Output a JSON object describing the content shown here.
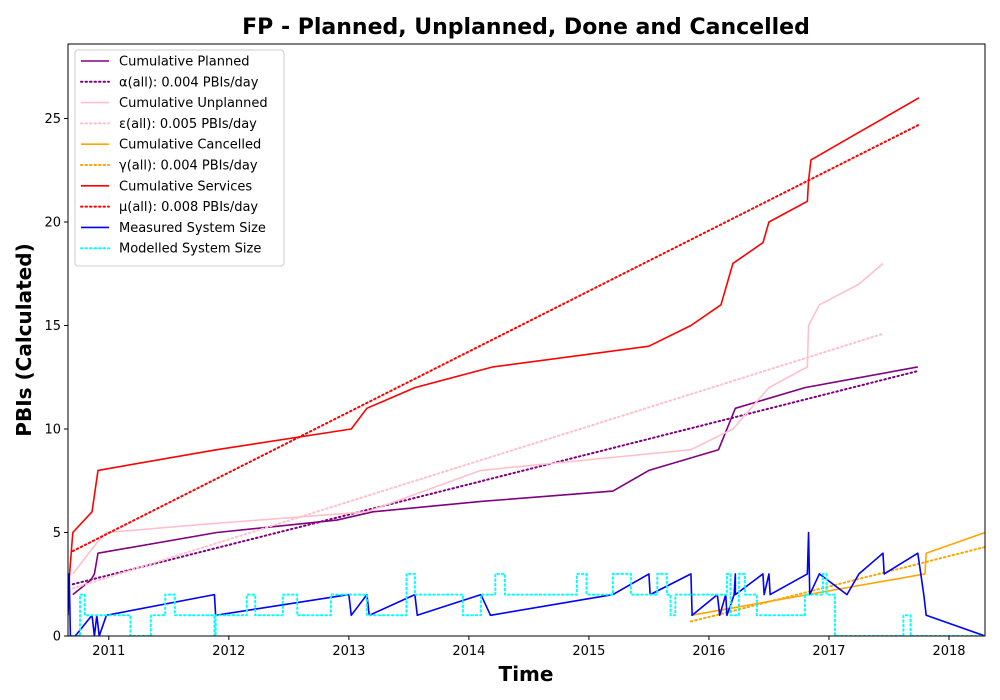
{
  "chart_data": {
    "type": "line",
    "title": "FP - Planned, Unplanned, Done  and Cancelled",
    "xlabel": "Time",
    "ylabel": "PBIs (Calculated)",
    "xlim": [
      2010.66,
      2018.3
    ],
    "ylim": [
      0,
      28.6
    ],
    "x_ticks": [
      2011,
      2012,
      2013,
      2014,
      2015,
      2016,
      2017,
      2018
    ],
    "x_tick_labels": [
      "2011",
      "2012",
      "2013",
      "2014",
      "2015",
      "2016",
      "2017",
      "2018"
    ],
    "y_ticks": [
      0,
      5,
      10,
      15,
      20,
      25
    ],
    "y_tick_labels": [
      "0",
      "5",
      "10",
      "15",
      "20",
      "25"
    ],
    "grid": false,
    "legend_position": "top-left",
    "series": [
      {
        "name": "Cumulative Planned",
        "color": "#800080",
        "style": "solid",
        "points": [
          [
            2010.7,
            2.0
          ],
          [
            2010.85,
            2.7
          ],
          [
            2010.88,
            3.0
          ],
          [
            2010.91,
            4.0
          ],
          [
            2011.9,
            5.0
          ],
          [
            2012.9,
            5.6
          ],
          [
            2013.2,
            6.0
          ],
          [
            2014.1,
            6.5
          ],
          [
            2015.2,
            7.0
          ],
          [
            2015.5,
            8.0
          ],
          [
            2016.08,
            9.0
          ],
          [
            2016.22,
            11.0
          ],
          [
            2016.8,
            12.0
          ],
          [
            2017.74,
            13.0
          ]
        ]
      },
      {
        "name": "α(all): 0.004 PBIs/day",
        "color": "#800080",
        "style": "dotted",
        "points": [
          [
            2010.7,
            2.5
          ],
          [
            2017.74,
            12.8
          ]
        ]
      },
      {
        "name": "Cumulative Unplanned",
        "color": "#ffc0cb",
        "style": "solid",
        "points": [
          [
            2010.7,
            3.0
          ],
          [
            2010.9,
            4.5
          ],
          [
            2010.98,
            5.0
          ],
          [
            2011.8,
            5.4
          ],
          [
            2013.15,
            6.0
          ],
          [
            2014.1,
            8.0
          ],
          [
            2015.5,
            8.8
          ],
          [
            2015.85,
            9.0
          ],
          [
            2016.2,
            10.0
          ],
          [
            2016.5,
            12.0
          ],
          [
            2016.82,
            13.0
          ],
          [
            2016.83,
            15.0
          ],
          [
            2016.92,
            16.0
          ],
          [
            2017.25,
            17.0
          ],
          [
            2017.45,
            18.0
          ]
        ]
      },
      {
        "name": "ε(all): 0.005 PBIs/day",
        "color": "#ffc0cb",
        "style": "dotted",
        "points": [
          [
            2010.7,
            2.3
          ],
          [
            2017.45,
            14.6
          ]
        ]
      },
      {
        "name": "Cumulative Cancelled",
        "color": "#ffa500",
        "style": "solid",
        "points": [
          [
            2015.85,
            1.0
          ],
          [
            2017.8,
            3.0
          ],
          [
            2017.81,
            4.0
          ],
          [
            2018.3,
            5.0
          ]
        ]
      },
      {
        "name": "γ(all): 0.004 PBIs/day",
        "color": "#ffa500",
        "style": "dotted",
        "points": [
          [
            2015.85,
            0.7
          ],
          [
            2018.3,
            4.3
          ]
        ]
      },
      {
        "name": "Cumulative Services",
        "color": "#ff0000",
        "style": "solid",
        "points": [
          [
            2010.66,
            2.0
          ],
          [
            2010.7,
            5.0
          ],
          [
            2010.86,
            6.0
          ],
          [
            2010.91,
            8.0
          ],
          [
            2011.9,
            9.0
          ],
          [
            2013.02,
            10.0
          ],
          [
            2013.15,
            11.0
          ],
          [
            2013.55,
            12.0
          ],
          [
            2014.2,
            13.0
          ],
          [
            2015.5,
            14.0
          ],
          [
            2015.85,
            15.0
          ],
          [
            2016.1,
            16.0
          ],
          [
            2016.15,
            17.0
          ],
          [
            2016.2,
            18.0
          ],
          [
            2016.45,
            19.0
          ],
          [
            2016.5,
            20.0
          ],
          [
            2016.82,
            21.0
          ],
          [
            2016.83,
            22.0
          ],
          [
            2016.85,
            23.0
          ],
          [
            2017.15,
            24.0
          ],
          [
            2017.45,
            25.0
          ],
          [
            2017.75,
            26.0
          ]
        ]
      },
      {
        "name": "μ(all): 0.008 PBIs/day",
        "color": "#ff0000",
        "style": "dotted",
        "points": [
          [
            2010.7,
            4.1
          ],
          [
            2017.75,
            24.7
          ]
        ]
      },
      {
        "name": "Measured System Size",
        "color": "#0000ff",
        "style": "solid",
        "points": [
          [
            2010.66,
            1.0
          ],
          [
            2010.67,
            3.0
          ],
          [
            2010.68,
            0.0
          ],
          [
            2010.72,
            0.0
          ],
          [
            2010.86,
            1.0
          ],
          [
            2010.88,
            0.0
          ],
          [
            2010.9,
            1.0
          ],
          [
            2010.92,
            0.0
          ],
          [
            2010.98,
            1.0
          ],
          [
            2011.88,
            2.0
          ],
          [
            2011.89,
            1.0
          ],
          [
            2013.0,
            2.0
          ],
          [
            2013.02,
            1.0
          ],
          [
            2013.15,
            2.0
          ],
          [
            2013.17,
            1.0
          ],
          [
            2013.55,
            2.0
          ],
          [
            2013.57,
            1.0
          ],
          [
            2014.1,
            2.0
          ],
          [
            2014.18,
            1.0
          ],
          [
            2015.2,
            2.0
          ],
          [
            2015.5,
            3.0
          ],
          [
            2015.51,
            2.0
          ],
          [
            2015.85,
            3.0
          ],
          [
            2015.86,
            1.0
          ],
          [
            2016.07,
            2.0
          ],
          [
            2016.09,
            1.0
          ],
          [
            2016.14,
            2.0
          ],
          [
            2016.15,
            1.0
          ],
          [
            2016.21,
            2.0
          ],
          [
            2016.22,
            3.0
          ],
          [
            2016.22,
            2.0
          ],
          [
            2016.45,
            3.0
          ],
          [
            2016.46,
            2.0
          ],
          [
            2016.5,
            3.0
          ],
          [
            2016.51,
            2.0
          ],
          [
            2016.82,
            3.0
          ],
          [
            2016.83,
            5.0
          ],
          [
            2016.84,
            2.0
          ],
          [
            2016.92,
            3.0
          ],
          [
            2017.15,
            2.0
          ],
          [
            2017.25,
            3.0
          ],
          [
            2017.45,
            4.0
          ],
          [
            2017.46,
            3.0
          ],
          [
            2017.74,
            4.0
          ],
          [
            2017.79,
            2.0
          ],
          [
            2017.81,
            1.0
          ],
          [
            2018.3,
            0.0
          ]
        ]
      },
      {
        "name": "Modelled System Size",
        "color": "#00ffff",
        "style": "dotted",
        "points": [
          [
            2010.66,
            0
          ],
          [
            2010.76,
            0
          ],
          [
            2010.76,
            2
          ],
          [
            2010.8,
            2
          ],
          [
            2010.8,
            1
          ],
          [
            2011.18,
            1
          ],
          [
            2011.18,
            0
          ],
          [
            2011.35,
            0
          ],
          [
            2011.35,
            1
          ],
          [
            2011.47,
            1
          ],
          [
            2011.47,
            2
          ],
          [
            2011.55,
            2
          ],
          [
            2011.55,
            1
          ],
          [
            2011.88,
            1
          ],
          [
            2011.88,
            0
          ],
          [
            2011.89,
            0
          ],
          [
            2011.89,
            1
          ],
          [
            2012.15,
            1
          ],
          [
            2012.15,
            2
          ],
          [
            2012.22,
            2
          ],
          [
            2012.22,
            1
          ],
          [
            2012.45,
            1
          ],
          [
            2012.45,
            2
          ],
          [
            2012.57,
            2
          ],
          [
            2012.57,
            1
          ],
          [
            2012.85,
            1
          ],
          [
            2012.85,
            2
          ],
          [
            2013.15,
            2
          ],
          [
            2013.15,
            1
          ],
          [
            2013.48,
            1
          ],
          [
            2013.48,
            3
          ],
          [
            2013.55,
            3
          ],
          [
            2013.55,
            2
          ],
          [
            2013.95,
            2
          ],
          [
            2013.95,
            1
          ],
          [
            2014.1,
            1
          ],
          [
            2014.1,
            2
          ],
          [
            2014.22,
            2
          ],
          [
            2014.22,
            3
          ],
          [
            2014.3,
            3
          ],
          [
            2014.3,
            2
          ],
          [
            2014.9,
            2
          ],
          [
            2014.9,
            3
          ],
          [
            2014.98,
            3
          ],
          [
            2014.98,
            2
          ],
          [
            2015.2,
            2
          ],
          [
            2015.2,
            3
          ],
          [
            2015.35,
            3
          ],
          [
            2015.35,
            2
          ],
          [
            2015.57,
            2
          ],
          [
            2015.57,
            3
          ],
          [
            2015.65,
            3
          ],
          [
            2015.65,
            2
          ],
          [
            2015.68,
            2
          ],
          [
            2015.68,
            1
          ],
          [
            2015.72,
            1
          ],
          [
            2015.72,
            2
          ],
          [
            2016.15,
            2
          ],
          [
            2016.15,
            3
          ],
          [
            2016.18,
            3
          ],
          [
            2016.18,
            1
          ],
          [
            2016.25,
            1
          ],
          [
            2016.25,
            3
          ],
          [
            2016.3,
            3
          ],
          [
            2016.3,
            2
          ],
          [
            2016.4,
            2
          ],
          [
            2016.4,
            1
          ],
          [
            2016.8,
            1
          ],
          [
            2016.8,
            2
          ],
          [
            2016.95,
            2
          ],
          [
            2016.95,
            3
          ],
          [
            2016.98,
            3
          ],
          [
            2016.98,
            2
          ],
          [
            2017.05,
            2
          ],
          [
            2017.05,
            0
          ],
          [
            2017.62,
            0
          ],
          [
            2017.62,
            1
          ],
          [
            2017.68,
            1
          ],
          [
            2017.68,
            0
          ],
          [
            2018.3,
            0
          ]
        ]
      }
    ]
  }
}
